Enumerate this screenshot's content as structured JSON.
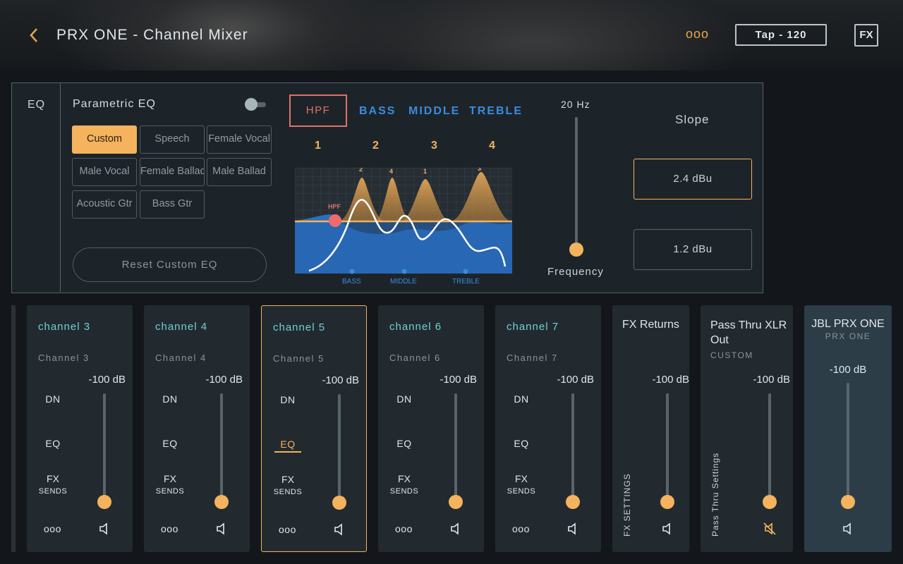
{
  "header": {
    "title": "PRX ONE - Channel Mixer",
    "more_label": "ooo",
    "tap_label": "Tap - 120",
    "fx_label": "FX"
  },
  "eq": {
    "tab_label": "EQ",
    "parametric_title": "Parametric EQ",
    "presets": [
      "Custom",
      "Speech",
      "Female Vocal",
      "Male Vocal",
      "Female Ballad",
      "Male Ballad",
      "Acoustic Gtr",
      "Bass Gtr"
    ],
    "active_preset": "Custom",
    "reset_label": "Reset Custom EQ",
    "filter_tabs": {
      "hpf": "HPF",
      "bass": "BASS",
      "middle": "MIDDLE",
      "treble": "TREBLE"
    },
    "band_numbers": [
      "1",
      "2",
      "3",
      "4"
    ],
    "graph": {
      "peak_labels": [
        "2",
        "4",
        "1",
        "3"
      ],
      "hpf_label": "HPF",
      "bottom_labels": [
        "BASS",
        "MIDDLE",
        "TREBLE"
      ]
    },
    "frequency_value": "20 Hz",
    "frequency_label": "Frequency",
    "slope_label": "Slope",
    "slope_options": [
      "2.4 dBu",
      "1.2 dBu"
    ],
    "active_slope": "2.4 dBu"
  },
  "channels": [
    {
      "name": "channel 3",
      "sub": "Channel 3",
      "db": "-100 dB",
      "dn": "DN",
      "eq": "EQ",
      "fx": "FX",
      "sends": "SENDS",
      "dots": "ooo"
    },
    {
      "name": "channel 4",
      "sub": "Channel 4",
      "db": "-100 dB",
      "dn": "DN",
      "eq": "EQ",
      "fx": "FX",
      "sends": "SENDS",
      "dots": "ooo"
    },
    {
      "name": "channel 5",
      "sub": "Channel 5",
      "db": "-100 dB",
      "dn": "DN",
      "eq": "EQ",
      "fx": "FX",
      "sends": "SENDS",
      "dots": "ooo"
    },
    {
      "name": "channel 6",
      "sub": "Channel 6",
      "db": "-100 dB",
      "dn": "DN",
      "eq": "EQ",
      "fx": "FX",
      "sends": "SENDS",
      "dots": "ooo"
    },
    {
      "name": "channel 7",
      "sub": "Channel 7",
      "db": "-100 dB",
      "dn": "DN",
      "eq": "EQ",
      "fx": "FX",
      "sends": "SENDS",
      "dots": "ooo"
    }
  ],
  "fx_returns": {
    "title": "FX Returns",
    "db": "-100  dB",
    "settings_label": "FX SETTINGS"
  },
  "pass_thru": {
    "title": "Pass Thru XLR Out",
    "sub": "CUSTOM",
    "db": "-100 dB",
    "settings_label": "Pass Thru Settings",
    "muted": true
  },
  "master": {
    "title": "JBL PRX ONE",
    "sub": "PRX ONE",
    "db": "-100 dB"
  },
  "colors": {
    "accent": "#f4b35c",
    "teal": "#6fd0d4",
    "blue": "#3a8be0",
    "hpf": "#e0716b"
  }
}
